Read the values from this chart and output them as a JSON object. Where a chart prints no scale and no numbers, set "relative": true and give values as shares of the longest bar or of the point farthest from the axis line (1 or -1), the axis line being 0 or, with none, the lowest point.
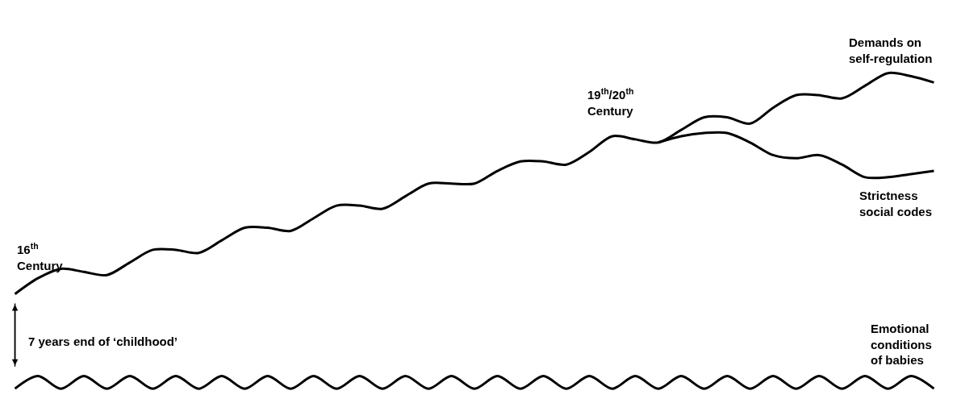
{
  "chart_data": {
    "type": "line",
    "relative": true,
    "legend": false,
    "marker": "none",
    "line_style": "solid",
    "categories": [
      null,
      null,
      null,
      null,
      null,
      null,
      null,
      null,
      null,
      null,
      null,
      null,
      null,
      null,
      null,
      null,
      null,
      null,
      null,
      null,
      null,
      null,
      null,
      null,
      null,
      null,
      null,
      null,
      null,
      null,
      null,
      null,
      null,
      null,
      null,
      null,
      null,
      null,
      null,
      null,
      null
    ],
    "series": [
      {
        "name": "Demands on self-regulation",
        "color": "#000000",
        "values": [
          0.3,
          0.35,
          0.38,
          0.37,
          0.36,
          0.4,
          0.44,
          0.44,
          0.43,
          0.47,
          0.51,
          0.51,
          0.5,
          0.54,
          0.58,
          0.58,
          0.57,
          0.61,
          0.65,
          0.65,
          0.65,
          0.69,
          0.72,
          0.72,
          0.71,
          0.75,
          0.8,
          0.79,
          0.78,
          0.82,
          0.86,
          0.86,
          0.84,
          0.89,
          0.93,
          0.93,
          0.92,
          0.96,
          1.0,
          0.99,
          0.97
        ]
      },
      {
        "name": "Strictness social codes",
        "color": "#000000",
        "values": [
          null,
          null,
          null,
          null,
          null,
          null,
          null,
          null,
          null,
          null,
          null,
          null,
          null,
          null,
          null,
          null,
          null,
          null,
          null,
          null,
          null,
          null,
          null,
          null,
          null,
          null,
          null,
          null,
          0.78,
          0.8,
          0.81,
          0.81,
          0.78,
          0.74,
          0.73,
          0.74,
          0.71,
          0.67,
          0.67,
          0.68,
          0.69
        ]
      },
      {
        "name": "Emotional conditions of babies",
        "color": "#000000",
        "values": [
          0.0,
          0.04,
          0.0,
          0.04,
          0.0,
          0.04,
          0.0,
          0.04,
          0.0,
          0.04,
          0.0,
          0.04,
          0.0,
          0.04,
          0.0,
          0.04,
          0.0,
          0.04,
          0.0,
          0.04,
          0.0,
          0.04,
          0.0,
          0.04,
          0.0,
          0.04,
          0.0,
          0.04,
          0.0,
          0.04,
          0.0,
          0.04,
          0.0,
          0.04,
          0.0,
          0.04,
          0.0,
          0.04,
          0.0,
          0.04,
          0.0
        ]
      }
    ],
    "annotations": [
      "16$^{th}$ Century",
      "19$^{th}$/20$^{th}$ Century",
      "7 years end of ‘childhood’"
    ]
  }
}
